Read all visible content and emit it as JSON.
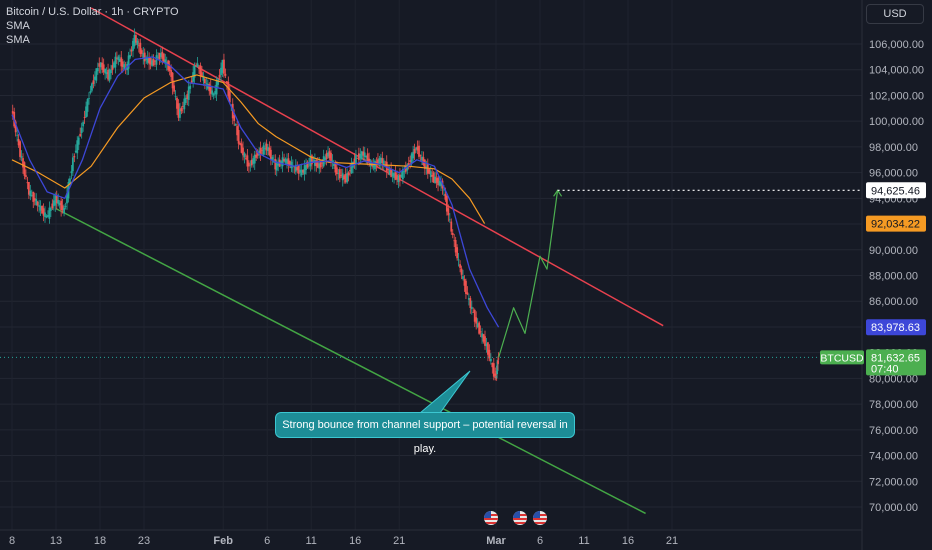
{
  "header": {
    "symbol": "Bitcoin / U.S. Dollar · 1h · CRYPTO",
    "indicator_1": "SMA",
    "indicator_2": "SMA"
  },
  "currency_button": "USD",
  "annotation": "Strong bounce from channel support – potential reversal in play.",
  "colors": {
    "background": "#161a25",
    "resistance_line": "#e8414e",
    "support_line": "#43a544",
    "sma_fast": "#3d47d8",
    "sma_slow": "#f59a23",
    "projection": "#4caf50",
    "callout": "#1d8d97"
  },
  "chart_data": {
    "type": "line",
    "y_axis": {
      "ticks": [
        "106,000.00",
        "104,000.00",
        "102,000.00",
        "100,000.00",
        "98,000.00",
        "96,000.00",
        "94,000.00",
        "92,000.00",
        "90,000.00",
        "88,000.00",
        "86,000.00",
        "84,000.00",
        "82,000.00",
        "80,000.00",
        "78,000.00",
        "76,000.00",
        "74,000.00",
        "72,000.00",
        "70,000.00"
      ],
      "ylim": [
        69000,
        107500
      ]
    },
    "x_axis": {
      "ticks": [
        "8",
        "13",
        "18",
        "23",
        "Feb",
        "6",
        "11",
        "16",
        "21",
        "Mar",
        "6",
        "11",
        "16",
        "21"
      ],
      "domain_days": [
        8,
        82
      ]
    },
    "price_labels": [
      {
        "value": "94,625.46",
        "kind": "target"
      },
      {
        "value": "92,034.22",
        "kind": "sma-slow"
      },
      {
        "value": "83,978.63",
        "kind": "sma-fast"
      },
      {
        "symbol": "BTCUSD",
        "value": "81,632.65",
        "countdown": "07:40",
        "kind": "last"
      }
    ],
    "price_series": [
      {
        "day": 8,
        "price": 101000
      },
      {
        "day": 9,
        "price": 97500
      },
      {
        "day": 10,
        "price": 94500
      },
      {
        "day": 11,
        "price": 93500
      },
      {
        "day": 12,
        "price": 92500
      },
      {
        "day": 13,
        "price": 94000
      },
      {
        "day": 14,
        "price": 93000
      },
      {
        "day": 15,
        "price": 97000
      },
      {
        "day": 16,
        "price": 99500
      },
      {
        "day": 17,
        "price": 102500
      },
      {
        "day": 18,
        "price": 104500
      },
      {
        "day": 19,
        "price": 103500
      },
      {
        "day": 20,
        "price": 105000
      },
      {
        "day": 21,
        "price": 104000
      },
      {
        "day": 22,
        "price": 106500
      },
      {
        "day": 23,
        "price": 105000
      },
      {
        "day": 24,
        "price": 104500
      },
      {
        "day": 25,
        "price": 105200
      },
      {
        "day": 26,
        "price": 104000
      },
      {
        "day": 27,
        "price": 100500
      },
      {
        "day": 28,
        "price": 102000
      },
      {
        "day": 29,
        "price": 104500
      },
      {
        "day": 30,
        "price": 103000
      },
      {
        "day": 31,
        "price": 102000
      },
      {
        "day": 32,
        "price": 104500
      },
      {
        "day": 33,
        "price": 101000
      },
      {
        "day": 34,
        "price": 98000
      },
      {
        "day": 35,
        "price": 96500
      },
      {
        "day": 36,
        "price": 97500
      },
      {
        "day": 37,
        "price": 98000
      },
      {
        "day": 38,
        "price": 96500
      },
      {
        "day": 39,
        "price": 97000
      },
      {
        "day": 40,
        "price": 96500
      },
      {
        "day": 41,
        "price": 96000
      },
      {
        "day": 42,
        "price": 97000
      },
      {
        "day": 43,
        "price": 96500
      },
      {
        "day": 44,
        "price": 97500
      },
      {
        "day": 45,
        "price": 96000
      },
      {
        "day": 46,
        "price": 95500
      },
      {
        "day": 47,
        "price": 97000
      },
      {
        "day": 48,
        "price": 97500
      },
      {
        "day": 49,
        "price": 96500
      },
      {
        "day": 50,
        "price": 97000
      },
      {
        "day": 51,
        "price": 96000
      },
      {
        "day": 52,
        "price": 95500
      },
      {
        "day": 53,
        "price": 96500
      },
      {
        "day": 54,
        "price": 98000
      },
      {
        "day": 55,
        "price": 96500
      },
      {
        "day": 56,
        "price": 95500
      },
      {
        "day": 57,
        "price": 95000
      },
      {
        "day": 58,
        "price": 91500
      },
      {
        "day": 59,
        "price": 88500
      },
      {
        "day": 60,
        "price": 86000
      },
      {
        "day": 61,
        "price": 84000
      },
      {
        "day": 62,
        "price": 82500
      },
      {
        "day": 63,
        "price": 80000
      },
      {
        "day": 63.3,
        "price": 81632.65
      }
    ],
    "projection": [
      {
        "day": 63.3,
        "price": 81632.65
      },
      {
        "day": 65,
        "price": 85500
      },
      {
        "day": 66.3,
        "price": 83500
      },
      {
        "day": 68,
        "price": 89500
      },
      {
        "day": 68.8,
        "price": 88500
      },
      {
        "day": 70,
        "price": 94625.46
      }
    ],
    "target_line": {
      "from_day": 70,
      "to_day": 82,
      "price": 94625.46
    },
    "resistance_channel": {
      "points": [
        {
          "day": 17,
          "price": 108800
        },
        {
          "day": 82,
          "price": 84100
        }
      ]
    },
    "support_channel": {
      "points": [
        {
          "day": 13,
          "price": 93200
        },
        {
          "day": 80,
          "price": 69500
        }
      ]
    },
    "sma_fast": [
      {
        "day": 8,
        "price": 100500
      },
      {
        "day": 10,
        "price": 97000
      },
      {
        "day": 12,
        "price": 94500
      },
      {
        "day": 14,
        "price": 94000
      },
      {
        "day": 16,
        "price": 97000
      },
      {
        "day": 18,
        "price": 101000
      },
      {
        "day": 20,
        "price": 103500
      },
      {
        "day": 22,
        "price": 104800
      },
      {
        "day": 24,
        "price": 105000
      },
      {
        "day": 26,
        "price": 104300
      },
      {
        "day": 28,
        "price": 103000
      },
      {
        "day": 30,
        "price": 102800
      },
      {
        "day": 32,
        "price": 102500
      },
      {
        "day": 34,
        "price": 99500
      },
      {
        "day": 36,
        "price": 97500
      },
      {
        "day": 38,
        "price": 96800
      },
      {
        "day": 40,
        "price": 96500
      },
      {
        "day": 42,
        "price": 96800
      },
      {
        "day": 44,
        "price": 96900
      },
      {
        "day": 46,
        "price": 96400
      },
      {
        "day": 48,
        "price": 96900
      },
      {
        "day": 50,
        "price": 96600
      },
      {
        "day": 52,
        "price": 96000
      },
      {
        "day": 54,
        "price": 97000
      },
      {
        "day": 56,
        "price": 96500
      },
      {
        "day": 58,
        "price": 93500
      },
      {
        "day": 60,
        "price": 88500
      },
      {
        "day": 62,
        "price": 85500
      },
      {
        "day": 63.3,
        "price": 83978.63
      }
    ],
    "sma_slow": [
      {
        "day": 8,
        "price": 97000
      },
      {
        "day": 11,
        "price": 96000
      },
      {
        "day": 14,
        "price": 94800
      },
      {
        "day": 17,
        "price": 96500
      },
      {
        "day": 20,
        "price": 99500
      },
      {
        "day": 23,
        "price": 101800
      },
      {
        "day": 26,
        "price": 103000
      },
      {
        "day": 29,
        "price": 103600
      },
      {
        "day": 32,
        "price": 103000
      },
      {
        "day": 34,
        "price": 101500
      },
      {
        "day": 36,
        "price": 99800
      },
      {
        "day": 38,
        "price": 98800
      },
      {
        "day": 40,
        "price": 98000
      },
      {
        "day": 42,
        "price": 97200
      },
      {
        "day": 44,
        "price": 96800
      },
      {
        "day": 47,
        "price": 96700
      },
      {
        "day": 50,
        "price": 96600
      },
      {
        "day": 53,
        "price": 96500
      },
      {
        "day": 56,
        "price": 96300
      },
      {
        "day": 58,
        "price": 95500
      },
      {
        "day": 60,
        "price": 94000
      },
      {
        "day": 61.7,
        "price": 92034.22
      }
    ]
  }
}
